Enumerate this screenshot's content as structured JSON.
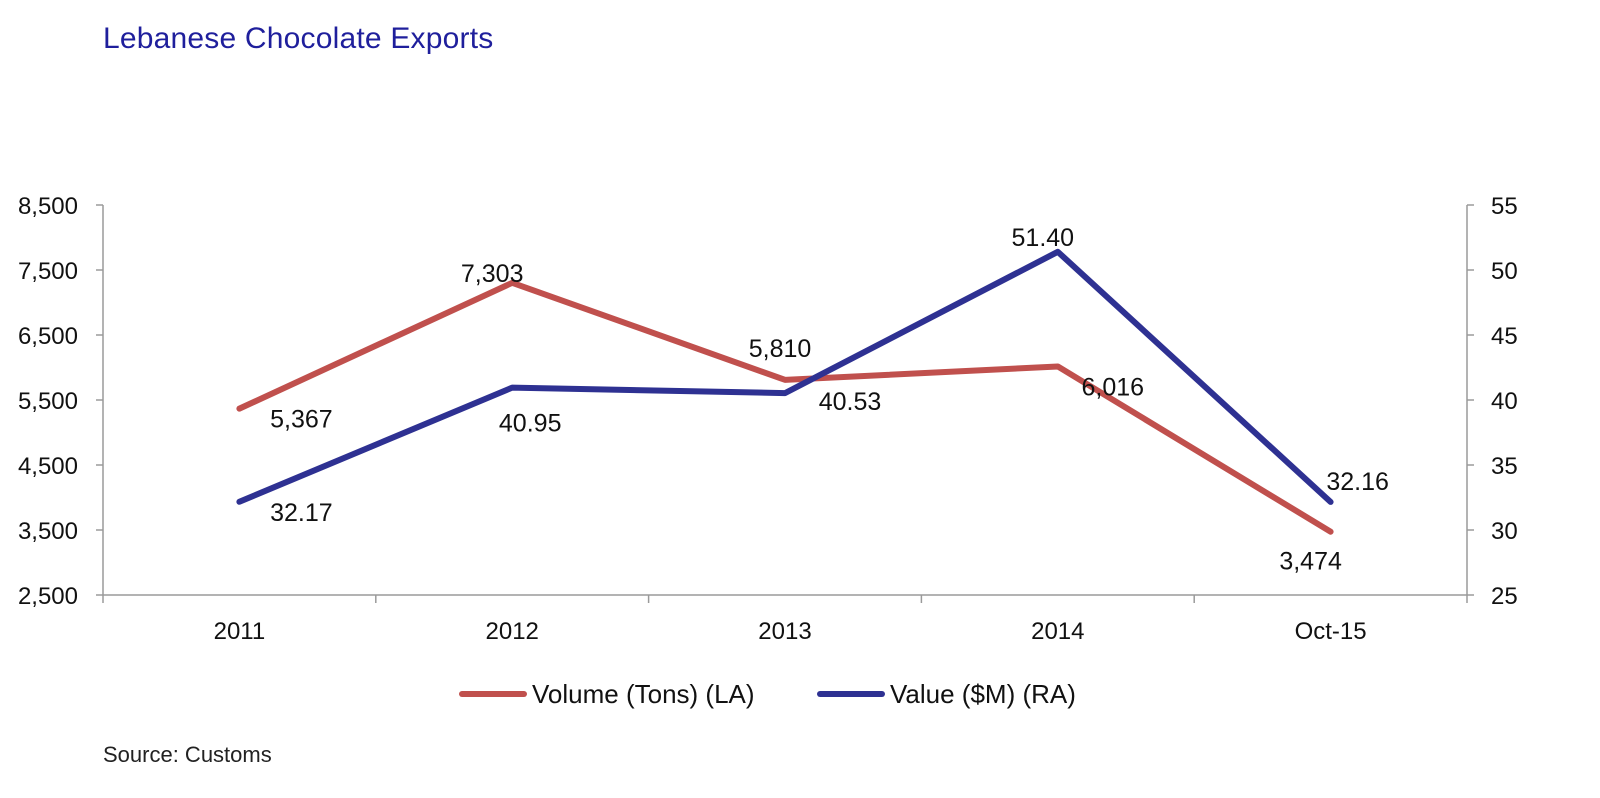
{
  "chart_data": {
    "type": "line",
    "title": "Lebanese Chocolate Exports",
    "source": "Source: Customs",
    "categories": [
      "2011",
      "2012",
      "2013",
      "2014",
      "Oct-15"
    ],
    "series": [
      {
        "name": "Volume (Tons) (LA)",
        "axis": "left",
        "color": "#c0504d",
        "values": [
          5367,
          7303,
          5810,
          6016,
          3474
        ],
        "labels": [
          "5,367",
          "7,303",
          "5,810",
          "6,016",
          "3,474"
        ]
      },
      {
        "name": "Value ($M) (RA)",
        "axis": "right",
        "color": "#2e3192",
        "values": [
          32.17,
          40.95,
          40.53,
          51.4,
          32.16
        ],
        "labels": [
          "32.17",
          "40.95",
          "40.53",
          "51.40",
          "32.16"
        ]
      }
    ],
    "left_axis": {
      "min": 2500,
      "max": 8500,
      "ticks": [
        2500,
        3500,
        4500,
        5500,
        6500,
        7500,
        8500
      ],
      "tick_labels": [
        "2,500",
        "3,500",
        "4,500",
        "5,500",
        "6,500",
        "7,500",
        "8,500"
      ]
    },
    "right_axis": {
      "min": 25,
      "max": 55,
      "ticks": [
        25,
        30,
        35,
        40,
        45,
        50,
        55
      ],
      "tick_labels": [
        "25",
        "30",
        "35",
        "40",
        "45",
        "50",
        "55"
      ]
    },
    "grid": false,
    "legend_position": "bottom-center"
  }
}
